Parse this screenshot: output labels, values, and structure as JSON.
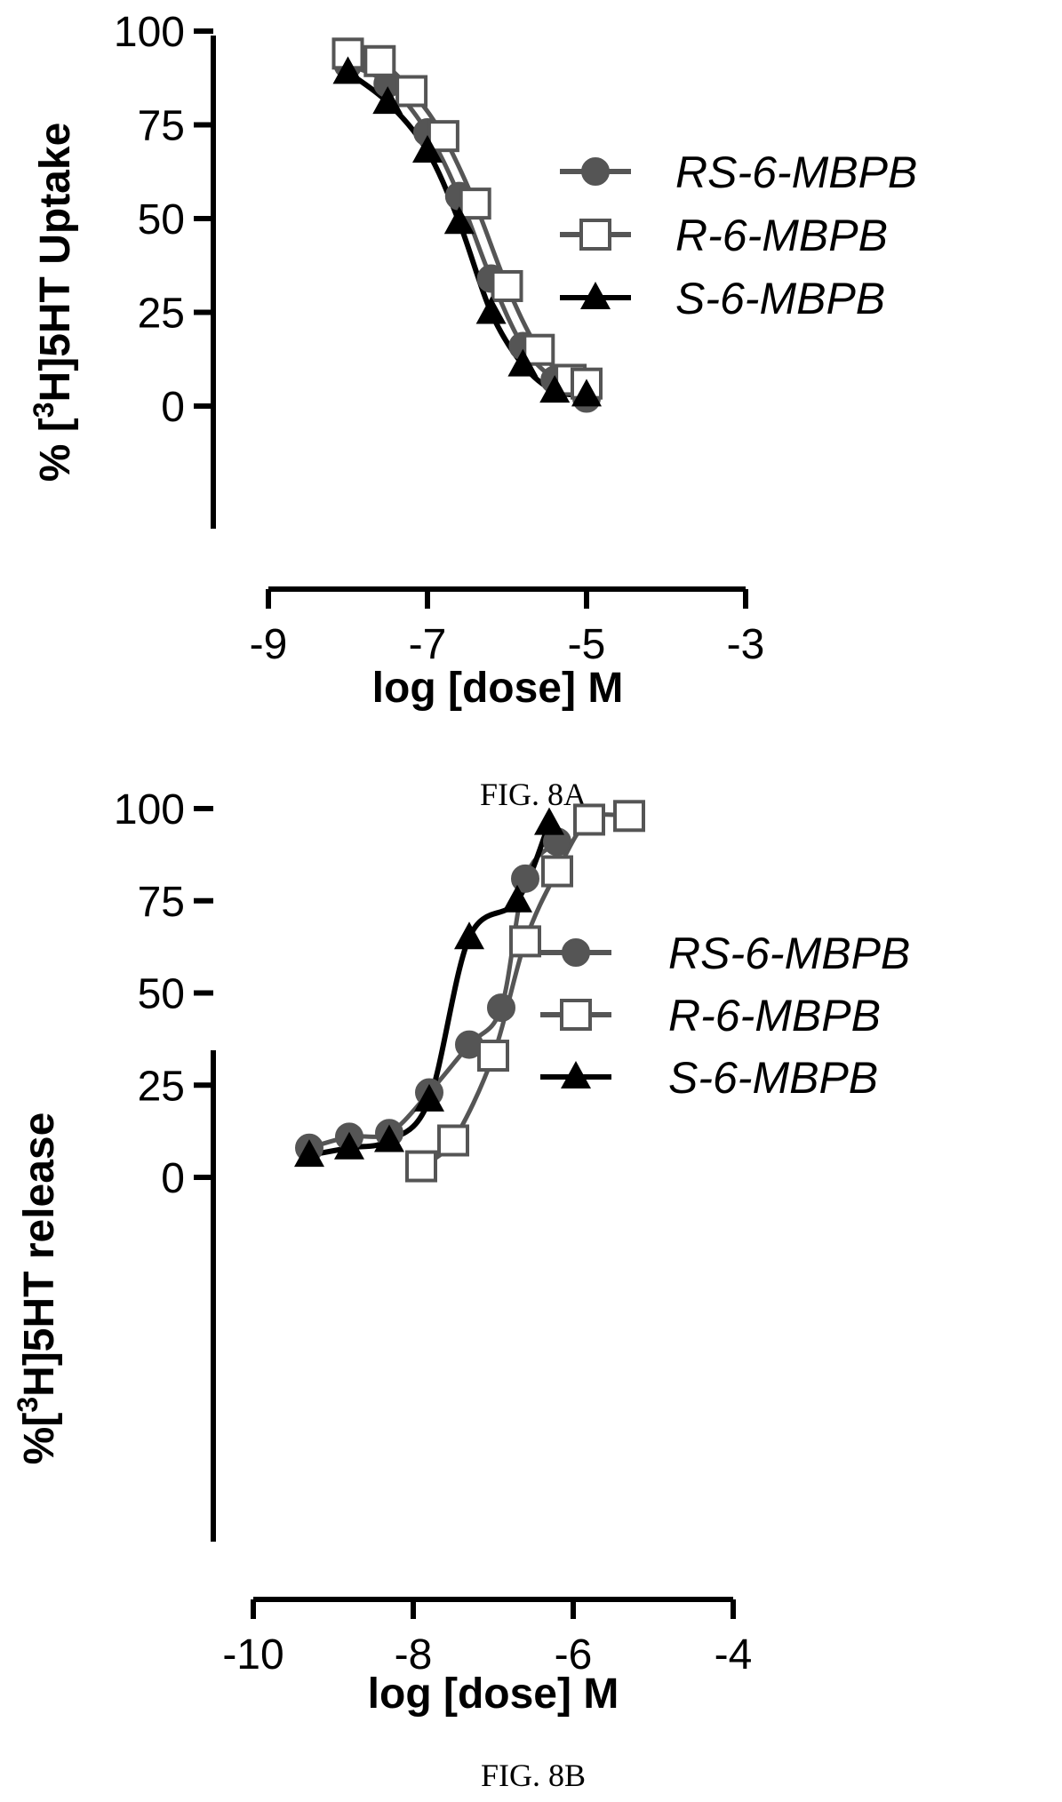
{
  "chart_data": [
    {
      "type": "scatter",
      "caption": "FIG. 8A",
      "xlabel": "log [dose] M",
      "ylabel": "% [3H]5HT Uptake",
      "ylabel_parts": [
        "% [",
        "3",
        "H]5HT Uptake"
      ],
      "xlim": [
        -9,
        -3
      ],
      "ylim": [
        0,
        100
      ],
      "xticks": [
        -9,
        -7,
        -5,
        -3
      ],
      "yticks": [
        0,
        25,
        50,
        75,
        100
      ],
      "xtick_labels": [
        "-9",
        "-7",
        "-5",
        "-3"
      ],
      "ytick_labels": [
        "0",
        "25",
        "50",
        "75",
        "100"
      ],
      "legend_position": "right",
      "series": [
        {
          "name": "RS-6-MBPB",
          "marker": "circle",
          "color": "#555555",
          "x": [
            -8.0,
            -7.5,
            -7.0,
            -6.6,
            -6.2,
            -5.8,
            -5.4,
            -5.0
          ],
          "y": [
            91,
            86,
            73,
            56,
            34,
            16,
            7,
            2
          ]
        },
        {
          "name": "R-6-MBPB",
          "marker": "square",
          "color": "#555555",
          "x": [
            -8.0,
            -7.6,
            -7.2,
            -6.8,
            -6.4,
            -6.0,
            -5.6,
            -5.2,
            -5.0
          ],
          "y": [
            94,
            92,
            84,
            72,
            54,
            32,
            15,
            7,
            6
          ]
        },
        {
          "name": "S-6-MBPB",
          "marker": "triangle",
          "color": "#000000",
          "x": [
            -8.0,
            -7.5,
            -7.0,
            -6.6,
            -6.2,
            -5.8,
            -5.4,
            -5.0
          ],
          "y": [
            89,
            81,
            68,
            49,
            25,
            11,
            4,
            3
          ]
        }
      ]
    },
    {
      "type": "scatter",
      "caption": "FIG. 8B",
      "xlabel": "log [dose] M",
      "ylabel": "%[3H]5HT release",
      "ylabel_parts": [
        "%[",
        "3",
        "H]5HT release"
      ],
      "xlim": [
        -10,
        -4
      ],
      "ylim": [
        0,
        100
      ],
      "xticks": [
        -10,
        -8,
        -6,
        -4
      ],
      "yticks": [
        0,
        25,
        50,
        75,
        100
      ],
      "xtick_labels": [
        "-10",
        "-8",
        "-6",
        "-4"
      ],
      "ytick_labels": [
        "0",
        "25",
        "50",
        "75",
        "100"
      ],
      "legend_position": "right",
      "series": [
        {
          "name": "RS-6-MBPB",
          "marker": "circle",
          "color": "#555555",
          "x": [
            -9.3,
            -8.8,
            -8.3,
            -7.8,
            -7.3,
            -6.9,
            -6.6,
            -6.2
          ],
          "y": [
            8,
            11,
            12,
            23,
            36,
            46,
            81,
            91
          ]
        },
        {
          "name": "R-6-MBPB",
          "marker": "square",
          "color": "#555555",
          "x": [
            -7.9,
            -7.5,
            -7.0,
            -6.6,
            -6.2,
            -5.8,
            -5.3
          ],
          "y": [
            3,
            10,
            33,
            64,
            83,
            97,
            98
          ]
        },
        {
          "name": "S-6-MBPB",
          "marker": "triangle",
          "color": "#000000",
          "x": [
            -9.3,
            -8.8,
            -8.3,
            -7.8,
            -7.3,
            -6.7,
            -6.3
          ],
          "y": [
            6,
            8,
            10,
            21,
            65,
            75,
            96
          ]
        }
      ]
    }
  ]
}
